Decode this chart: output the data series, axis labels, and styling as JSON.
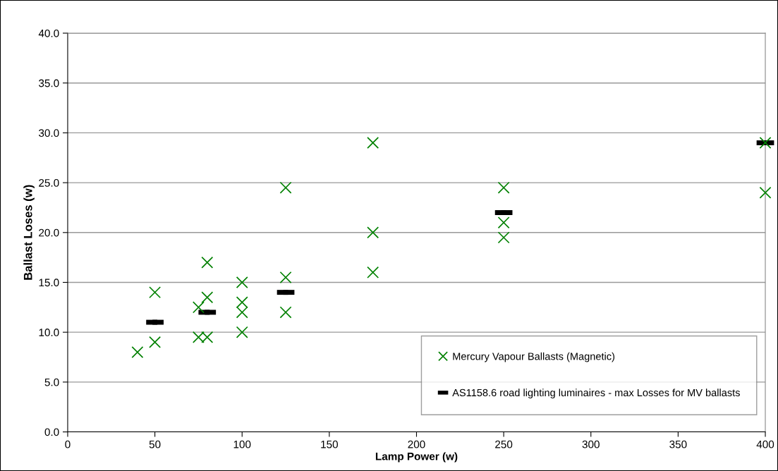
{
  "chart_data": {
    "type": "scatter",
    "xlabel": "Lamp Power (w)",
    "ylabel": "Ballast Loses (w)",
    "series": [
      {
        "name": "Mercury Vapour Ballasts (Magnetic)",
        "color": "#008000",
        "marker": "cross",
        "x": [
          40,
          50,
          50,
          75,
          75,
          80,
          80,
          80,
          100,
          100,
          100,
          100,
          125,
          125,
          125,
          175,
          175,
          175,
          250,
          250,
          250,
          400,
          400
        ],
        "values": [
          8,
          14,
          9,
          12.5,
          9.5,
          17,
          13.5,
          9.5,
          15,
          13,
          12,
          10,
          24.5,
          15.5,
          12,
          29,
          20,
          16,
          24.5,
          21,
          19.5,
          29,
          24
        ]
      },
      {
        "name": "AS1158.6 road lighting luminaires - max Losses for MV ballasts",
        "color": "#000000",
        "marker": "square",
        "x": [
          50,
          80,
          125,
          250,
          400
        ],
        "values": [
          11,
          12,
          14,
          22,
          29
        ],
        "xerrors": [
          5,
          5,
          5,
          5,
          5
        ]
      }
    ],
    "xlim": [
      0,
      400
    ],
    "xticks": [
      0,
      50,
      100,
      150,
      200,
      250,
      300,
      350,
      400
    ],
    "ylim": [
      0,
      40
    ],
    "yticks": [
      {
        "value": 0,
        "label": "0.0"
      },
      {
        "value": 5,
        "label": "5.0"
      },
      {
        "value": 10,
        "label": "10.0"
      },
      {
        "value": 15,
        "label": "15.0"
      },
      {
        "value": 20,
        "label": "20.0"
      },
      {
        "value": 25,
        "label": "25.0"
      },
      {
        "value": 30,
        "label": "30.0"
      },
      {
        "value": 35,
        "label": "35.0"
      },
      {
        "value": 40,
        "label": "40.0"
      }
    ],
    "grid": "y",
    "legend": "lower right"
  }
}
